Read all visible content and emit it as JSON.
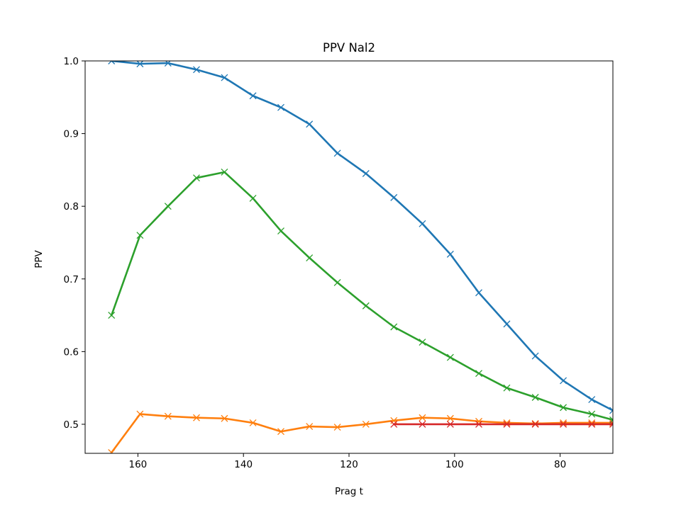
{
  "chart_data": {
    "type": "line",
    "title": "PPV Nal2",
    "xlabel": "Prag t",
    "ylabel": "PPV",
    "xlim": [
      170,
      70
    ],
    "ylim": [
      0.46,
      1.0
    ],
    "x_inverted": true,
    "grid": false,
    "marker": "x",
    "x_ticks": [
      160,
      140,
      120,
      100,
      80
    ],
    "x_tick_labels": [
      "160",
      "140",
      "120",
      "100",
      "80"
    ],
    "y_ticks": [
      0.5,
      0.6,
      0.7,
      0.8,
      0.9,
      1.0
    ],
    "y_tick_labels": [
      "0.5",
      "0.6",
      "0.7",
      "0.8",
      "0.9",
      "1.0"
    ],
    "series": [
      {
        "color": "#1f77b4",
        "x": [
          165,
          159.6,
          154.3,
          148.9,
          143.6,
          138.2,
          132.9,
          127.5,
          122.2,
          116.8,
          111.5,
          106.1,
          100.8,
          95.4,
          90.1,
          84.7,
          79.4,
          74.0,
          70
        ],
        "y": [
          1.0,
          0.996,
          0.997,
          0.988,
          0.977,
          0.952,
          0.936,
          0.913,
          0.873,
          0.845,
          0.812,
          0.776,
          0.734,
          0.681,
          0.638,
          0.594,
          0.56,
          0.534,
          0.519
        ]
      },
      {
        "color": "#ff7f0e",
        "x": [
          165,
          159.6,
          154.3,
          148.9,
          143.6,
          138.2,
          132.9,
          127.5,
          122.2,
          116.8,
          111.5,
          106.1,
          100.8,
          95.4,
          90.1,
          84.7,
          79.4,
          74.0,
          70
        ],
        "y": [
          0.461,
          0.514,
          0.511,
          0.509,
          0.508,
          0.502,
          0.49,
          0.497,
          0.496,
          0.5,
          0.505,
          0.509,
          0.508,
          0.504,
          0.502,
          0.501,
          0.502,
          0.502,
          0.502
        ]
      },
      {
        "color": "#2ca02c",
        "x": [
          165,
          159.6,
          154.3,
          148.9,
          143.6,
          138.2,
          132.9,
          127.5,
          122.2,
          116.8,
          111.5,
          106.1,
          100.8,
          95.4,
          90.1,
          84.7,
          79.4,
          74.0,
          70
        ],
        "y": [
          0.65,
          0.76,
          0.8,
          0.839,
          0.847,
          0.811,
          0.766,
          0.729,
          0.695,
          0.663,
          0.634,
          0.613,
          0.592,
          0.57,
          0.55,
          0.537,
          0.523,
          0.514,
          0.506
        ]
      },
      {
        "color": "#d62728",
        "x": [
          111.5,
          106.1,
          100.8,
          95.4,
          90.1,
          84.7,
          79.4,
          74.0,
          70
        ],
        "y": [
          0.5,
          0.5,
          0.5,
          0.5,
          0.5,
          0.5,
          0.5,
          0.5,
          0.5
        ]
      }
    ]
  }
}
